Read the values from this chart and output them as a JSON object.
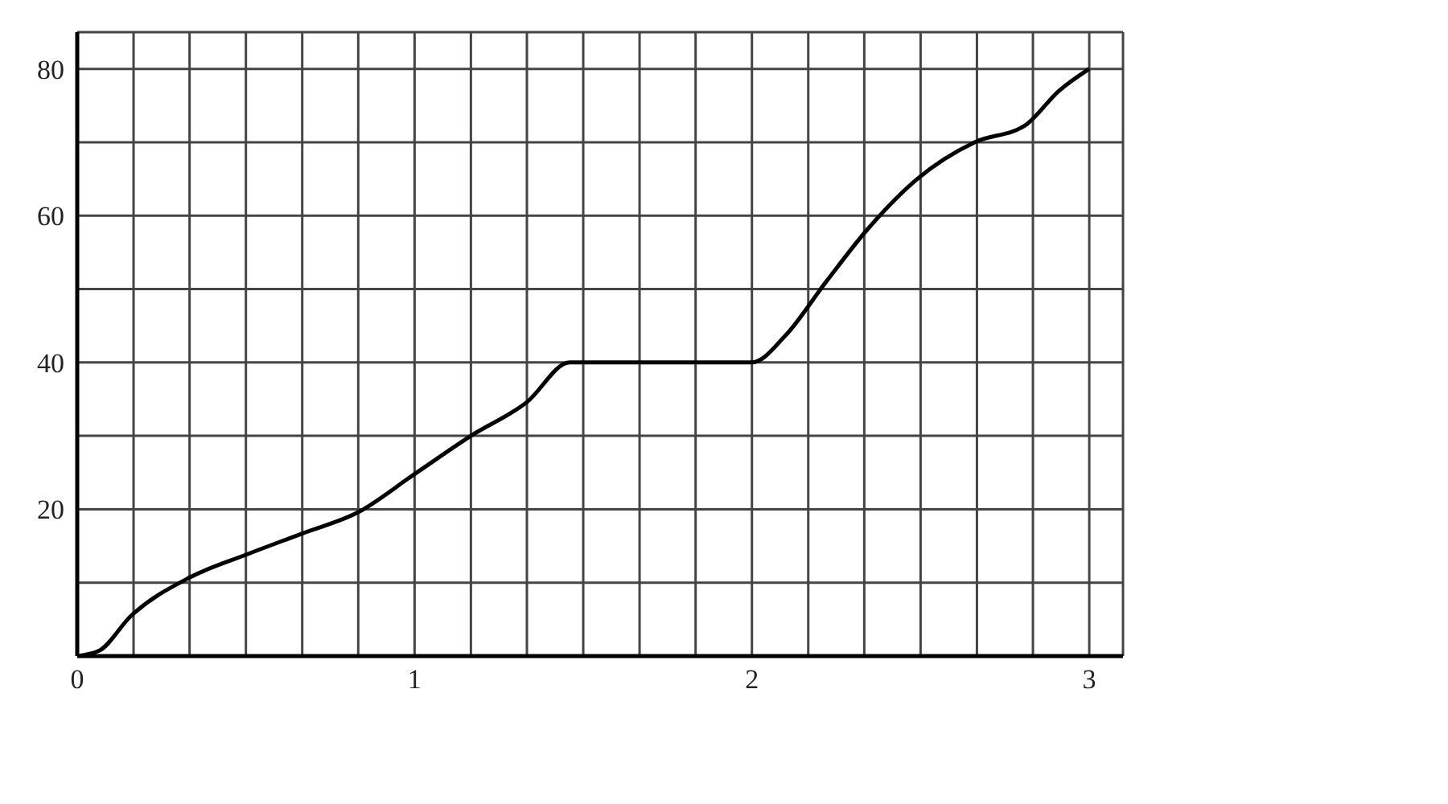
{
  "chart_data": {
    "type": "line",
    "x": [
      0,
      0.064,
      0.16,
      0.333,
      0.5,
      0.667,
      0.833,
      1,
      1.167,
      1.333,
      1.46,
      1.5,
      2,
      2.1,
      2.22,
      2.34,
      2.49,
      2.66,
      2.81,
      2.91,
      3
    ],
    "series": [
      {
        "color": "#000000",
        "values": [
          0,
          0.7,
          5.5,
          10.7,
          13.8,
          16.7,
          19.6,
          24.8,
          30,
          34.6,
          40,
          40,
          40,
          43.7,
          51,
          58,
          65,
          70,
          72.3,
          77,
          80
        ]
      }
    ],
    "xlim": [
      0,
      3.1
    ],
    "ylim": [
      0,
      85
    ],
    "xticks": [
      0,
      {
        "value": 0.167,
        "label": null
      },
      {
        "value": 0.333,
        "label": null
      },
      {
        "value": 0.5,
        "label": null
      },
      {
        "value": 0.667,
        "label": null
      },
      {
        "value": 0.833,
        "label": null
      },
      1,
      {
        "value": 1.167,
        "label": null
      },
      {
        "value": 1.333,
        "label": null
      },
      {
        "value": 1.5,
        "label": null
      },
      {
        "value": 1.667,
        "label": null
      },
      {
        "value": 1.833,
        "label": null
      },
      2,
      {
        "value": 2.167,
        "label": null
      },
      {
        "value": 2.333,
        "label": null
      },
      {
        "value": 2.5,
        "label": null
      },
      {
        "value": 2.667,
        "label": null
      },
      {
        "value": 2.833,
        "label": null
      },
      3
    ],
    "yticks": [
      {
        "value": 10,
        "label": null
      },
      20,
      {
        "value": 30,
        "label": null
      },
      40,
      {
        "value": 50,
        "label": null
      },
      60,
      {
        "value": 70,
        "label": null
      },
      80
    ],
    "grid": true,
    "marker": "none",
    "line_style": "solid"
  }
}
